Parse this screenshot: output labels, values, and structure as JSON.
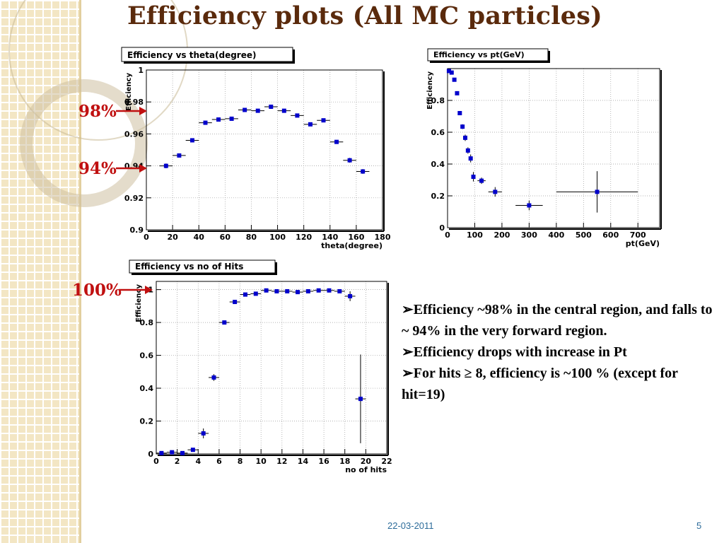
{
  "slide": {
    "title": "Efficiency plots (All MC particles)",
    "date": "22-03-2011",
    "page": "5"
  },
  "markers": {
    "m98": "98%",
    "m94": "94%",
    "m100": "100%"
  },
  "bullets": [
    "Efficiency ~98% in the central region, and falls to ~ 94% in the very forward region.",
    "Efficiency drops with increase in Pt",
    "For hits ≥ 8, efficiency is ~100 % (except for hit=19)"
  ],
  "colors": {
    "accent": "#c01010",
    "title": "#5a2a0c",
    "marker": "#0000cc",
    "footer": "#2d6c9a"
  },
  "chart_data": [
    {
      "type": "scatter",
      "title": "Efficiency vs theta(degree)",
      "xlabel": "theta(degree)",
      "ylabel": "Efficiency",
      "xlim": [
        0,
        180
      ],
      "ylim": [
        0.9,
        1.0
      ],
      "x_ticks": [
        0,
        20,
        40,
        60,
        80,
        100,
        120,
        140,
        160,
        180
      ],
      "y_ticks": [
        0.9,
        0.92,
        0.94,
        0.96,
        0.98,
        1
      ],
      "y_tick_labels": [
        "0.9",
        "0.92",
        "0.94",
        "0.96",
        "0.98",
        "1"
      ],
      "grid": true,
      "x": [
        15,
        25,
        35,
        45,
        55,
        65,
        75,
        85,
        95,
        105,
        115,
        125,
        135,
        145,
        155,
        165
      ],
      "y": [
        0.94,
        0.9465,
        0.956,
        0.967,
        0.969,
        0.9695,
        0.975,
        0.9745,
        0.977,
        0.9745,
        0.9715,
        0.966,
        0.9685,
        0.955,
        0.9435,
        0.9365
      ],
      "xerr": [
        5,
        5,
        5,
        5,
        5,
        5,
        5,
        5,
        5,
        5,
        5,
        5,
        5,
        5,
        5,
        5
      ],
      "yerr": [
        0.0015,
        0.0012,
        0.0012,
        0.0012,
        0.001,
        0.001,
        0.001,
        0.001,
        0.001,
        0.001,
        0.001,
        0.001,
        0.001,
        0.0012,
        0.0015,
        0.0015
      ]
    },
    {
      "type": "scatter",
      "title": "Efficiency vs pt(GeV)",
      "xlabel": "pt(GeV)",
      "ylabel": "Efficiency",
      "xlim": [
        0,
        780
      ],
      "ylim": [
        0,
        1.0
      ],
      "x_ticks": [
        0,
        100,
        200,
        300,
        400,
        500,
        600,
        700
      ],
      "y_ticks": [
        0,
        0.2,
        0.4,
        0.6,
        0.8
      ],
      "y_tick_labels": [
        "0",
        "0.2",
        "0.4",
        "0.6",
        "0.8"
      ],
      "grid": true,
      "x": [
        5,
        15,
        25,
        35,
        45,
        55,
        65,
        75,
        85,
        95,
        125,
        175,
        300,
        550
      ],
      "y": [
        0.985,
        0.975,
        0.93,
        0.845,
        0.72,
        0.635,
        0.565,
        0.485,
        0.435,
        0.32,
        0.295,
        0.225,
        0.14,
        0.225
      ],
      "xerr": [
        5,
        5,
        5,
        5,
        5,
        5,
        5,
        5,
        5,
        5,
        15,
        25,
        50,
        150
      ],
      "yerr": [
        0.005,
        0.005,
        0.008,
        0.01,
        0.012,
        0.015,
        0.02,
        0.02,
        0.025,
        0.03,
        0.02,
        0.03,
        0.03,
        0.13
      ]
    },
    {
      "type": "scatter",
      "title": "Efficiency vs no of Hits",
      "xlabel": "no of hits",
      "ylabel": "Efficiency",
      "xlim": [
        0,
        22
      ],
      "ylim": [
        0,
        1.05
      ],
      "x_ticks": [
        0,
        2,
        4,
        6,
        8,
        10,
        12,
        14,
        16,
        18,
        20,
        22
      ],
      "y_ticks": [
        0,
        0.2,
        0.4,
        0.6,
        0.8,
        1
      ],
      "y_tick_labels": [
        "0",
        "0.2",
        "0.4",
        "0.6",
        "0.8",
        "1"
      ],
      "grid": true,
      "x": [
        0.5,
        1.5,
        2.5,
        3.5,
        4.5,
        5.5,
        6.5,
        7.5,
        8.5,
        9.5,
        10.5,
        11.5,
        12.5,
        13.5,
        14.5,
        15.5,
        16.5,
        17.5,
        18.5,
        19.5
      ],
      "y": [
        0.005,
        0.01,
        0.005,
        0.025,
        0.125,
        0.465,
        0.8,
        0.925,
        0.97,
        0.975,
        0.995,
        0.99,
        0.99,
        0.985,
        0.99,
        0.995,
        0.995,
        0.99,
        0.96,
        0.335
      ],
      "xerr": [
        0.5,
        0.5,
        0.5,
        0.5,
        0.5,
        0.5,
        0.5,
        0.5,
        0.5,
        0.5,
        0.5,
        0.5,
        0.5,
        0.5,
        0.5,
        0.5,
        0.5,
        0.5,
        0.5,
        0.5
      ],
      "yerr": [
        0.003,
        0.005,
        0.003,
        0.01,
        0.03,
        0.02,
        0.01,
        0.005,
        0.005,
        0.005,
        0.003,
        0.003,
        0.003,
        0.003,
        0.003,
        0.003,
        0.003,
        0.005,
        0.03,
        0.27
      ]
    }
  ]
}
